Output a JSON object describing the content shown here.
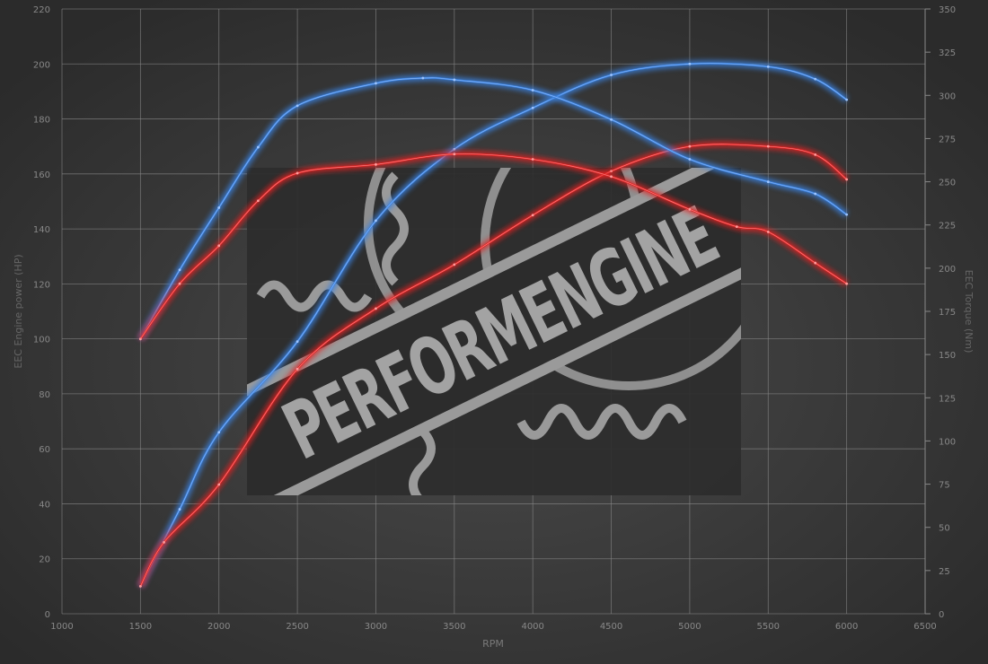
{
  "chart_data": {
    "type": "line",
    "title": "",
    "xlabel": "RPM",
    "ylabel_left": "EEC Engine power (HP)",
    "ylabel_right": "EEC Torque (Nm)",
    "xlim": [
      1000,
      6500
    ],
    "xticks": [
      1000,
      1500,
      2000,
      2500,
      3000,
      3500,
      4000,
      4500,
      5000,
      5500,
      6000,
      6500
    ],
    "ylim_left": [
      0,
      220
    ],
    "yticks_left": [
      0,
      20,
      40,
      60,
      80,
      100,
      120,
      140,
      160,
      180,
      200,
      220
    ],
    "ylim_right": [
      0,
      350
    ],
    "yticks_right": [
      0,
      25,
      50,
      75,
      100,
      125,
      150,
      175,
      200,
      225,
      250,
      275,
      300,
      325,
      350
    ],
    "grid": true,
    "legend": "none",
    "series": [
      {
        "kind": "power",
        "axis": "left",
        "color": "#3b82e0",
        "x": [
          1500,
          1750,
          2000,
          2500,
          3000,
          3500,
          4000,
          4500,
          5000,
          5500,
          5800,
          6000
        ],
        "y": [
          10,
          38,
          66,
          99,
          143,
          169,
          184,
          196,
          200,
          199,
          194.5,
          187
        ]
      },
      {
        "kind": "power",
        "axis": "left",
        "color": "#e02424",
        "x": [
          1500,
          1650,
          2000,
          2500,
          3000,
          3500,
          4000,
          4500,
          5000,
          5500,
          5800,
          6000
        ],
        "y": [
          10,
          26,
          47,
          89,
          111,
          127,
          145,
          161,
          170,
          170,
          167,
          158
        ]
      },
      {
        "kind": "torque",
        "axis": "right",
        "color": "#3b82e0",
        "x": [
          1500,
          1750,
          2000,
          2250,
          2500,
          3000,
          3300,
          3500,
          4000,
          4500,
          5000,
          5500,
          5800,
          6000
        ],
        "y": [
          159,
          199,
          235,
          270,
          294,
          307,
          310,
          309,
          303,
          286,
          263,
          250,
          243,
          231
        ]
      },
      {
        "kind": "torque",
        "axis": "right",
        "color": "#e02424",
        "x": [
          1500,
          1750,
          2000,
          2250,
          2500,
          3000,
          3500,
          4000,
          4500,
          5000,
          5300,
          5500,
          5800,
          6000
        ],
        "y": [
          159,
          191,
          213,
          239,
          255,
          260,
          266,
          263,
          253,
          234,
          224,
          221,
          203,
          191
        ]
      }
    ]
  },
  "watermark": {
    "text": "PERFORMENGINE"
  }
}
